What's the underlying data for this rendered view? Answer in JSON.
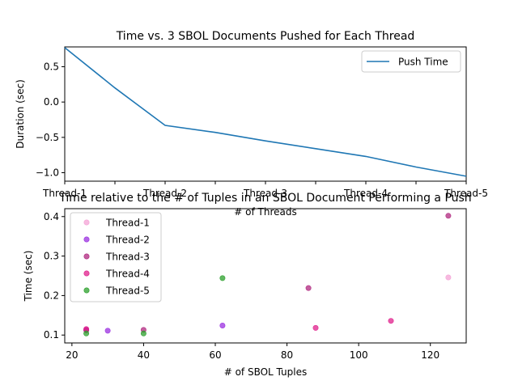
{
  "chart_data": [
    {
      "type": "line",
      "title": "Time vs. 3 SBOL Documents Pushed for Each Thread",
      "xlabel": "# of Threads",
      "ylabel": "Duration (sec)",
      "categories": [
        "Thread-1",
        "Thread-2",
        "Thread-3",
        "Thread-4",
        "Thread-5"
      ],
      "x": [
        0,
        0.5,
        1,
        1.5,
        2,
        2.5,
        3,
        3.5,
        4
      ],
      "x_ticks": [
        "Thread-1",
        "",
        "Thread-2",
        "",
        "Thread-3",
        "",
        "Thread-4",
        "",
        "Thread-5"
      ],
      "xlim": [
        0,
        4
      ],
      "ylim": [
        -1.12,
        0.78
      ],
      "yticks": [
        -1.0,
        -0.5,
        0.0,
        0.5
      ],
      "ytick_labels": [
        "−1.0",
        "−0.5",
        "0.0",
        "0.5"
      ],
      "series": [
        {
          "name": "Push Time",
          "color": "#1f77b4",
          "values": [
            0.77,
            0.2,
            -0.33,
            -0.43,
            -0.55,
            -0.66,
            -0.77,
            -0.92,
            -1.05
          ]
        }
      ],
      "legend": {
        "position": "upper right"
      },
      "grid": false
    },
    {
      "type": "scatter",
      "title": "Time relative to the # of Tuples in an SBOL Document Performing a Push",
      "xlabel": "# of SBOL Tuples",
      "ylabel": "Time (sec)",
      "xlim": [
        18,
        130
      ],
      "ylim": [
        0.08,
        0.42
      ],
      "xticks": [
        20,
        40,
        60,
        80,
        100,
        120
      ],
      "yticks": [
        0.1,
        0.2,
        0.3,
        0.4
      ],
      "ytick_labels": [
        "0.1",
        "0.2",
        "0.3",
        "0.4"
      ],
      "series": [
        {
          "name": "Thread-1",
          "color": "#f4a3d6",
          "points": [
            [
              24,
              0.113
            ],
            [
              125,
              0.246
            ]
          ]
        },
        {
          "name": "Thread-2",
          "color": "#9b30e0",
          "points": [
            [
              24,
              0.113
            ],
            [
              30,
              0.111
            ],
            [
              62,
              0.124
            ]
          ]
        },
        {
          "name": "Thread-3",
          "color": "#b0287f",
          "points": [
            [
              24,
              0.112
            ],
            [
              40,
              0.113
            ],
            [
              86,
              0.219
            ],
            [
              125,
              0.402
            ]
          ]
        },
        {
          "name": "Thread-4",
          "color": "#e0208c",
          "points": [
            [
              24,
              0.115
            ],
            [
              88,
              0.118
            ],
            [
              109,
              0.136
            ]
          ]
        },
        {
          "name": "Thread-5",
          "color": "#2ca02c",
          "points": [
            [
              24,
              0.104
            ],
            [
              40,
              0.104
            ],
            [
              62,
              0.244
            ]
          ]
        }
      ],
      "legend": {
        "position": "upper left"
      },
      "grid": false
    }
  ]
}
